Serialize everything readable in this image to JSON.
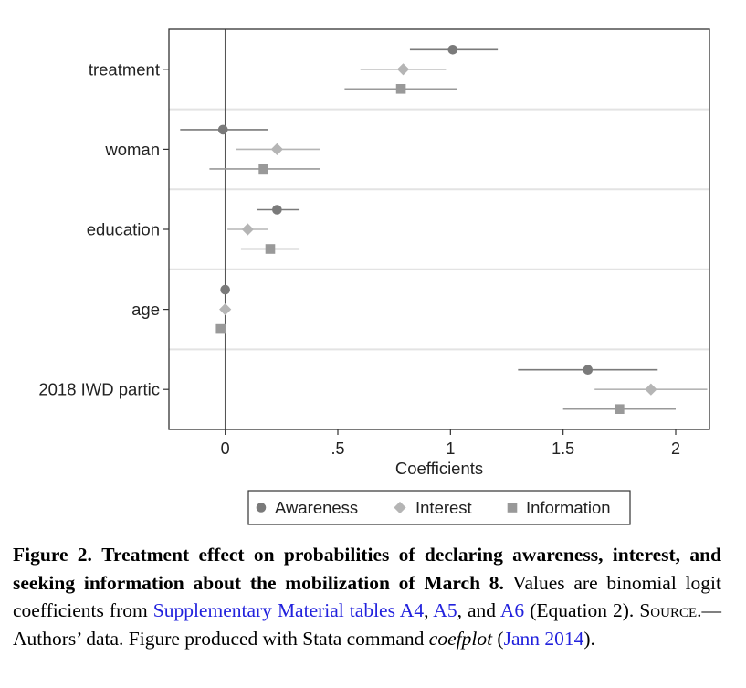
{
  "chart_data": {
    "type": "scatter",
    "subtype": "coefficient-plot",
    "orientation": "horizontal",
    "xlabel": "Coefficients",
    "ylabel": "",
    "xlim": [
      -0.25,
      2.15
    ],
    "x_ticks": [
      0,
      0.5,
      1,
      1.5,
      2
    ],
    "x_tick_labels": [
      "0",
      ".5",
      "1",
      "1.5",
      "2"
    ],
    "reference_line": 0,
    "grid": "horizontal separators between categories",
    "legend_position": "bottom",
    "categories": [
      "treatment",
      "woman",
      "education",
      "age",
      "2018 IWD partic"
    ],
    "series": [
      {
        "name": "Awareness",
        "marker": "circle",
        "color": "#7a7a7a",
        "estimates": [
          1.01,
          -0.01,
          0.23,
          0.0,
          1.61
        ],
        "ci_low": [
          0.82,
          -0.2,
          0.14,
          0.0,
          1.3
        ],
        "ci_high": [
          1.21,
          0.19,
          0.33,
          0.0,
          1.92
        ]
      },
      {
        "name": "Interest",
        "marker": "diamond",
        "color": "#b5b5b5",
        "estimates": [
          0.79,
          0.23,
          0.1,
          0.0,
          1.89
        ],
        "ci_low": [
          0.6,
          0.05,
          0.01,
          0.0,
          1.64
        ],
        "ci_high": [
          0.98,
          0.42,
          0.19,
          0.0,
          2.14
        ]
      },
      {
        "name": "Information",
        "marker": "square",
        "color": "#999999",
        "estimates": [
          0.78,
          0.17,
          0.2,
          -0.02,
          1.75
        ],
        "ci_low": [
          0.53,
          -0.07,
          0.07,
          -0.02,
          1.5
        ],
        "ci_high": [
          1.03,
          0.42,
          0.33,
          -0.02,
          2.0
        ]
      }
    ]
  },
  "caption": {
    "figure_label": "Figure 2.",
    "title": "Treatment effect on probabilities of declaring awareness, interest, and seeking information about the mobilization of March 8.",
    "text_1": "Values are binomial logit coefficients from",
    "link_1": "Supplementary Material tables A4",
    "sep_1": ",",
    "link_2": "A5",
    "text_2": ", and",
    "link_3": "A6",
    "text_3": "(Equation 2).",
    "source_label": "Source.",
    "text_4": "—Authors’ data. Figure produced with Stata command",
    "command": "coefplot",
    "text_5": "(",
    "link_4": "Jann 2014",
    "text_6": ")."
  }
}
